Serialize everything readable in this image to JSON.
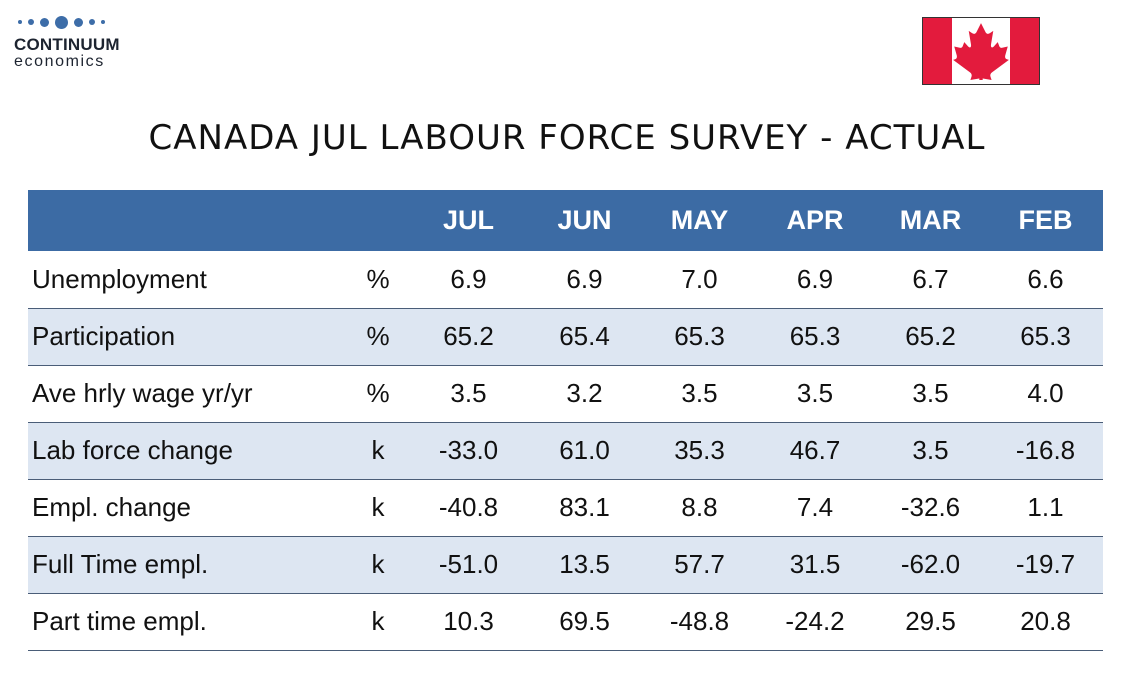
{
  "logo": {
    "name": "CONTINUUM",
    "sub": "economics"
  },
  "title": "CANADA JUL LABOUR FORCE SURVEY - ACTUAL",
  "colors": {
    "header_bg": "#3c6ba4",
    "stripe_bg": "#dde6f2",
    "flag_red": "#e31b3d"
  },
  "table": {
    "columns": [
      "JUL",
      "JUN",
      "MAY",
      "APR",
      "MAR",
      "FEB"
    ],
    "rows": [
      {
        "label": "Unemployment",
        "unit": "%",
        "values": [
          "6.9",
          "6.9",
          "7.0",
          "6.9",
          "6.7",
          "6.6"
        ]
      },
      {
        "label": "Participation",
        "unit": "%",
        "values": [
          "65.2",
          "65.4",
          "65.3",
          "65.3",
          "65.2",
          "65.3"
        ]
      },
      {
        "label": "Ave hrly wage yr/yr",
        "unit": "%",
        "values": [
          "3.5",
          "3.2",
          "3.5",
          "3.5",
          "3.5",
          "4.0"
        ]
      },
      {
        "label": "Lab force change",
        "unit": "k",
        "values": [
          "-33.0",
          "61.0",
          "35.3",
          "46.7",
          "3.5",
          "-16.8"
        ]
      },
      {
        "label": "Empl. change",
        "unit": "k",
        "values": [
          "-40.8",
          "83.1",
          "8.8",
          "7.4",
          "-32.6",
          "1.1"
        ]
      },
      {
        "label": "Full Time empl.",
        "unit": "k",
        "values": [
          "-51.0",
          "13.5",
          "57.7",
          "31.5",
          "-62.0",
          "-19.7"
        ]
      },
      {
        "label": "Part time empl.",
        "unit": "k",
        "values": [
          "10.3",
          "69.5",
          "-48.8",
          "-24.2",
          "29.5",
          "20.8"
        ]
      }
    ]
  }
}
